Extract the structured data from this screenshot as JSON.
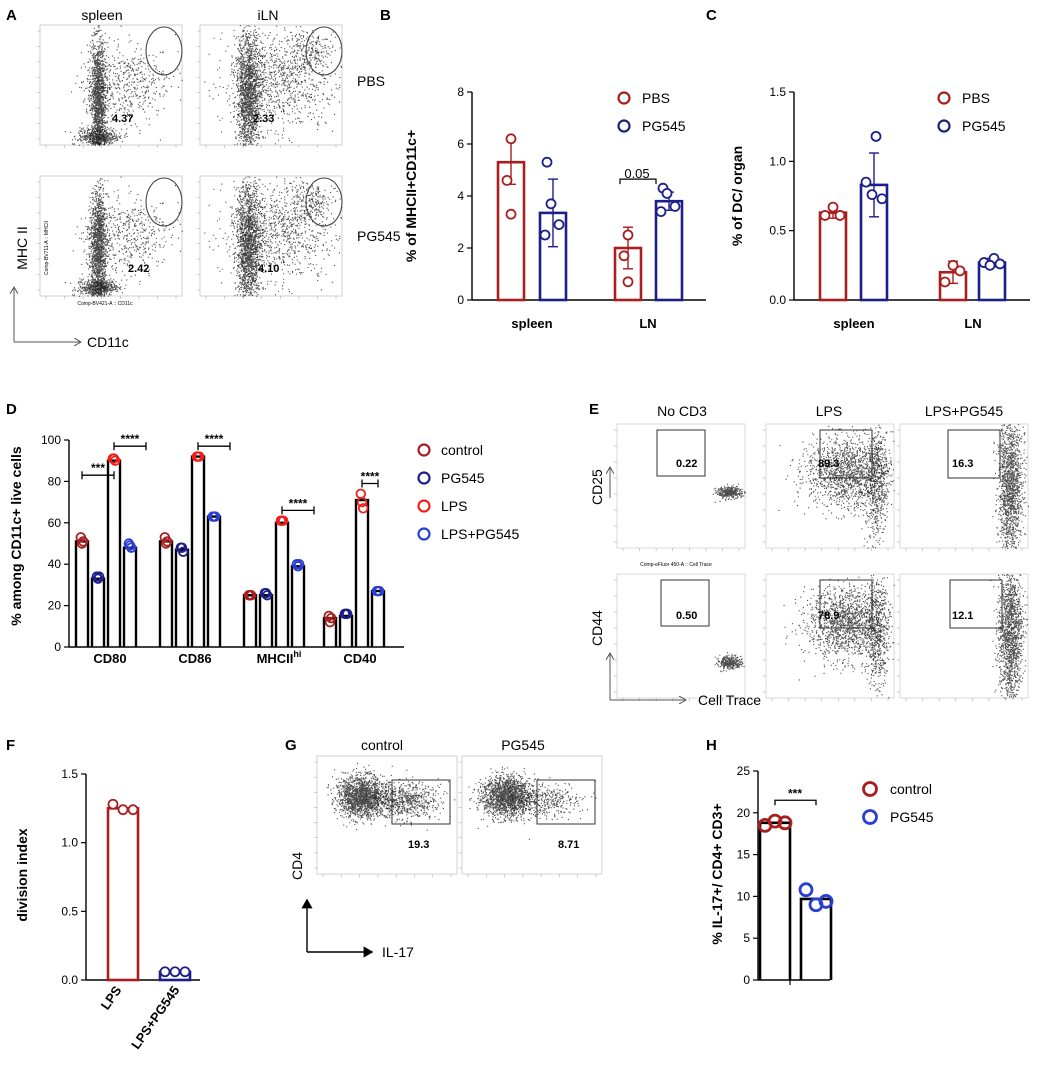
{
  "colors": {
    "control": "#a91e1e",
    "pg545": "#1c1f8a",
    "lps": "#f21e1e",
    "lpspg": "#2a3fd2",
    "black": "#000000"
  },
  "panel_letters": {
    "A": "A",
    "B": "B",
    "C": "C",
    "D": "D",
    "E": "E",
    "F": "F",
    "G": "G",
    "H": "H"
  },
  "flow_A": {
    "col_labels": [
      "spleen",
      "iLN"
    ],
    "row_labels": [
      "PBS",
      "PG545"
    ],
    "gate_values": [
      "4.37",
      "2.33",
      "2.42",
      "4.10"
    ],
    "y_axis": "MHC II",
    "x_axis": "CD11c",
    "y_param": "Comp-BV711-A :: MHCII",
    "x_param": "Comp-BV421-A :: CD11c"
  },
  "flow_E": {
    "col_labels": [
      "No CD3",
      "LPS",
      "LPS+PG545"
    ],
    "row_labels": [
      "CD25",
      "CD44"
    ],
    "gate_values": [
      "0.22",
      "89.3",
      "16.3",
      "0.50",
      "78.9",
      "12.1"
    ],
    "x_axis": "Cell Trace",
    "x_param": "Comp-eFluor 450-A :: Cell Trace"
  },
  "flow_G": {
    "col_labels": [
      "control",
      "PG545"
    ],
    "gate_values": [
      "19.3",
      "8.71"
    ],
    "y_axis": "CD4",
    "x_axis": "IL-17"
  },
  "chart_data": [
    {
      "panel": "B",
      "type": "bar",
      "categories": [
        "spleen",
        "LN"
      ],
      "ylabel": "% of MHCII+CD11c+",
      "ylim": [
        0,
        8
      ],
      "yticks": [
        "0",
        "2",
        "4",
        "6",
        "8"
      ],
      "legend": [
        "PBS",
        "PG545"
      ],
      "series": [
        {
          "name": "PBS",
          "values": [
            5.3,
            2.0
          ],
          "err": [
            0.85,
            0.8
          ],
          "points": [
            [
              6.2,
              4.6,
              3.3
            ],
            [
              2.5,
              1.7,
              0.7
            ]
          ]
        },
        {
          "name": "PG545",
          "values": [
            3.35,
            3.8
          ],
          "err": [
            1.3,
            0.35
          ],
          "points": [
            [
              5.3,
              3.7,
              2.9,
              2.5
            ],
            [
              4.3,
              4.1,
              3.6,
              3.4
            ]
          ]
        }
      ],
      "annotations": [
        "0.05"
      ]
    },
    {
      "panel": "C",
      "type": "bar",
      "categories": [
        "spleen",
        "LN"
      ],
      "ylabel": "% of DC/ organ",
      "ylim": [
        0,
        1.5
      ],
      "yticks": [
        "0.0",
        "0.5",
        "1.0",
        "1.5"
      ],
      "legend": [
        "PBS",
        "PG545"
      ],
      "series": [
        {
          "name": "PBS",
          "values": [
            0.63,
            0.2
          ],
          "err": [
            0.04,
            0.08
          ],
          "points": [
            [
              0.67,
              0.61,
              0.61
            ],
            [
              0.25,
              0.13,
              0.21
            ]
          ]
        },
        {
          "name": "PG545",
          "values": [
            0.83,
            0.27
          ],
          "err": [
            0.23,
            0.03
          ],
          "points": [
            [
              1.18,
              0.85,
              0.73,
              0.76
            ],
            [
              0.3,
              0.27,
              0.26,
              0.25
            ]
          ]
        }
      ]
    },
    {
      "panel": "D",
      "type": "bar",
      "categories": [
        "CD80",
        "CD86",
        "MHCII",
        "CD40"
      ],
      "category_superscripts": [
        "",
        "",
        "hi",
        ""
      ],
      "ylabel": "% among CD11c+ live cells",
      "ylim": [
        0,
        100
      ],
      "yticks": [
        "0",
        "20",
        "40",
        "60",
        "80",
        "100"
      ],
      "legend": [
        "control",
        "PG545",
        "LPS",
        "LPS+PG545"
      ],
      "series": [
        {
          "name": "control",
          "values": [
            51,
            51,
            25,
            14
          ],
          "points": [
            [
              53,
              50,
              51
            ],
            [
              53,
              50,
              51
            ],
            [
              25,
              25,
              25
            ],
            [
              15,
              12,
              14
            ]
          ]
        },
        {
          "name": "PG545",
          "values": [
            33,
            47,
            25,
            15
          ],
          "points": [
            [
              34,
              33,
              34
            ],
            [
              48,
              48,
              46
            ],
            [
              26,
              26,
              25
            ],
            [
              16,
              16,
              16
            ]
          ]
        },
        {
          "name": "LPS",
          "values": [
            90,
            92,
            60,
            71
          ],
          "points": [
            [
              91,
              91,
              90
            ],
            [
              92,
              92,
              92
            ],
            [
              61,
              61,
              61
            ],
            [
              74,
              70,
              67
            ]
          ]
        },
        {
          "name": "LPS+PG545",
          "values": [
            48,
            63,
            39,
            27
          ],
          "points": [
            [
              50,
              49,
              48
            ],
            [
              63,
              63,
              63
            ],
            [
              40,
              39,
              40
            ],
            [
              27,
              27,
              27
            ]
          ]
        }
      ],
      "significance": [
        "***",
        "****",
        "****",
        "****",
        "****"
      ]
    },
    {
      "panel": "F",
      "type": "bar",
      "categories": [
        "LPS",
        "LPS+PG545"
      ],
      "ylabel": "division index",
      "ylim": [
        0,
        1.5
      ],
      "yticks": [
        "0.0",
        "0.5",
        "1.0",
        "1.5"
      ],
      "series": [
        {
          "name": "division index",
          "values": [
            1.25,
            0.06
          ],
          "points": [
            [
              1.28,
              1.24,
              1.24
            ],
            [
              0.06,
              0.06,
              0.06
            ]
          ]
        }
      ]
    },
    {
      "panel": "H",
      "type": "bar",
      "categories": [
        ""
      ],
      "ylabel": "% IL-17+/ CD4+ CD3+",
      "ylim": [
        0,
        25
      ],
      "yticks": [
        "0",
        "5",
        "10",
        "15",
        "20",
        "25"
      ],
      "legend": [
        "control",
        "PG545"
      ],
      "series": [
        {
          "name": "control",
          "values": [
            18.8
          ],
          "points": [
            [
              18.5,
              19.0,
              18.8
            ]
          ]
        },
        {
          "name": "PG545",
          "values": [
            9.7
          ],
          "points": [
            [
              10.8,
              9.0,
              9.4
            ]
          ]
        }
      ],
      "significance": [
        "***"
      ]
    }
  ]
}
